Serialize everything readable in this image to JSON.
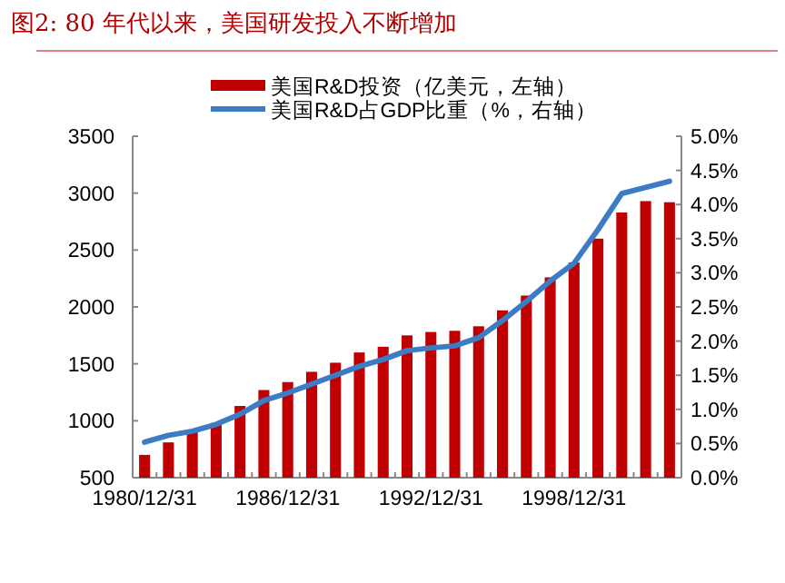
{
  "chart_data": {
    "type": "bar",
    "title": "图2:  80 年代以来，美国研发投入不断增加",
    "categories": [
      "1980/12/31",
      null,
      null,
      null,
      null,
      null,
      "1986/12/31",
      null,
      null,
      null,
      null,
      null,
      "1992/12/31",
      null,
      null,
      null,
      null,
      null,
      "1998/12/31",
      null,
      null,
      null,
      null
    ],
    "series": [
      {
        "name": "美国R&D投资（亿美元，左轴）",
        "color": "#c00000",
        "values": [
          700,
          810,
          900,
          980,
          1130,
          1270,
          1340,
          1430,
          1510,
          1600,
          1650,
          1750,
          1780,
          1790,
          1830,
          1970,
          2100,
          2260,
          2390,
          2600,
          2830,
          2930,
          2920
        ]
      },
      {
        "name": "美国R&D占GDP比重（%，右轴）",
        "type": "line",
        "axis": "y2",
        "color": "#3c7cc4",
        "values": [
          0.52,
          0.62,
          0.68,
          0.78,
          0.93,
          1.13,
          1.24,
          1.37,
          1.5,
          1.63,
          1.73,
          1.86,
          1.9,
          1.93,
          2.05,
          2.3,
          2.58,
          2.88,
          3.14,
          3.63,
          4.16,
          4.25,
          4.34
        ]
      }
    ],
    "ylim": [
      500,
      3500
    ],
    "yticks": [
      500,
      1000,
      1500,
      2000,
      2500,
      3000,
      3500
    ],
    "y2lim": [
      0,
      5
    ],
    "y2ticks": [
      {
        "value": 0,
        "label": "0.0%"
      },
      {
        "value": 0.5,
        "label": "0.5%"
      },
      {
        "value": 1,
        "label": "1.0%"
      },
      {
        "value": 1.5,
        "label": "1.5%"
      },
      {
        "value": 2,
        "label": "2.0%"
      },
      {
        "value": 2.5,
        "label": "2.5%"
      },
      {
        "value": 3,
        "label": "3.0%"
      },
      {
        "value": 3.5,
        "label": "3.5%"
      },
      {
        "value": 4,
        "label": "4.0%"
      },
      {
        "value": 4.5,
        "label": "4.5%"
      },
      {
        "value": 5,
        "label": "5.0%"
      }
    ],
    "legend": "top"
  }
}
